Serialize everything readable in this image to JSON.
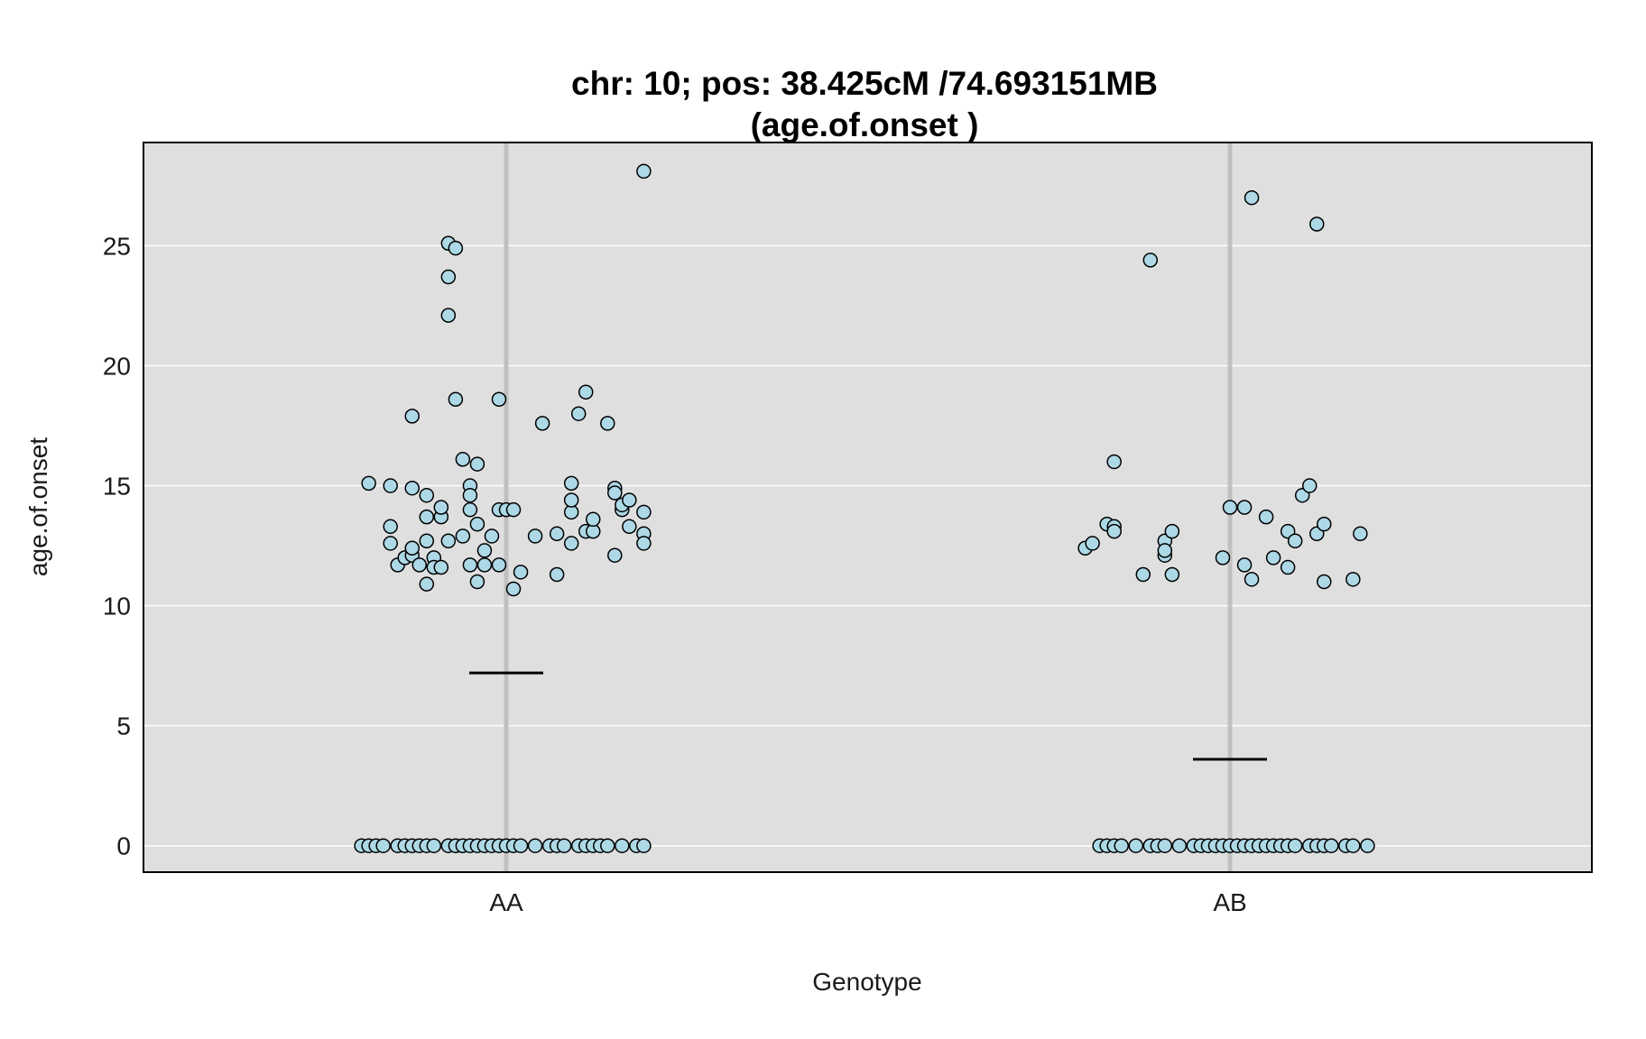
{
  "chart_data": {
    "type": "scatter",
    "title": "chr: 10; pos: 38.425cM /74.693151MB",
    "subtitle": "(age.of.onset )",
    "xlabel": "Genotype",
    "ylabel": "age.of.onset",
    "categories": [
      "AA",
      "AB"
    ],
    "ylim": [
      -1.1,
      29.3
    ],
    "yticks": [
      0,
      5,
      10,
      15,
      20,
      25
    ],
    "grid": true,
    "means": [
      7.2,
      3.6
    ],
    "colors": {
      "panel": "#dfdfdf",
      "point_fill": "#add8e6",
      "point_stroke": "#000000",
      "grid": "#ffffff",
      "center_line": "#c0c0c0"
    },
    "series": [
      {
        "category": "AA",
        "points": [
          [
            -0.19,
            15.1
          ],
          [
            -0.16,
            13.3
          ],
          [
            -0.16,
            15.0
          ],
          [
            -0.16,
            12.6
          ],
          [
            -0.15,
            11.7
          ],
          [
            -0.14,
            12.0
          ],
          [
            -0.13,
            12.1
          ],
          [
            -0.12,
            11.7
          ],
          [
            -0.13,
            17.9
          ],
          [
            -0.13,
            14.9
          ],
          [
            -0.13,
            12.4
          ],
          [
            -0.11,
            14.6
          ],
          [
            -0.11,
            13.7
          ],
          [
            -0.11,
            12.7
          ],
          [
            -0.1,
            12.0
          ],
          [
            -0.11,
            10.9
          ],
          [
            -0.1,
            11.6
          ],
          [
            -0.09,
            13.7
          ],
          [
            -0.09,
            14.1
          ],
          [
            -0.09,
            11.6
          ],
          [
            -0.08,
            12.7
          ],
          [
            -0.08,
            25.1
          ],
          [
            -0.07,
            24.9
          ],
          [
            -0.08,
            23.7
          ],
          [
            -0.08,
            22.1
          ],
          [
            -0.07,
            18.6
          ],
          [
            -0.06,
            16.1
          ],
          [
            -0.05,
            15.0
          ],
          [
            -0.05,
            14.6
          ],
          [
            -0.05,
            14.0
          ],
          [
            -0.06,
            12.9
          ],
          [
            -0.05,
            11.7
          ],
          [
            -0.04,
            11.0
          ],
          [
            -0.04,
            15.9
          ],
          [
            -0.04,
            13.4
          ],
          [
            -0.03,
            12.3
          ],
          [
            -0.03,
            11.7
          ],
          [
            -0.02,
            12.9
          ],
          [
            -0.01,
            18.6
          ],
          [
            -0.01,
            14.0
          ],
          [
            -0.01,
            11.7
          ],
          [
            0.0,
            14.0
          ],
          [
            0.01,
            14.0
          ],
          [
            0.01,
            10.7
          ],
          [
            0.02,
            11.4
          ],
          [
            0.04,
            12.9
          ],
          [
            0.05,
            17.6
          ],
          [
            0.07,
            13.0
          ],
          [
            0.07,
            11.3
          ],
          [
            0.09,
            13.9
          ],
          [
            0.09,
            15.1
          ],
          [
            0.09,
            14.4
          ],
          [
            0.09,
            12.6
          ],
          [
            0.1,
            18.0
          ],
          [
            0.11,
            13.1
          ],
          [
            0.12,
            13.1
          ],
          [
            0.11,
            18.9
          ],
          [
            0.12,
            13.6
          ],
          [
            0.14,
            17.6
          ],
          [
            0.15,
            12.1
          ],
          [
            0.15,
            14.9
          ],
          [
            0.15,
            14.7
          ],
          [
            0.16,
            14.0
          ],
          [
            0.16,
            14.2
          ],
          [
            0.17,
            14.4
          ],
          [
            0.17,
            13.3
          ],
          [
            0.19,
            13.9
          ],
          [
            0.19,
            13.0
          ],
          [
            0.19,
            12.6
          ],
          [
            0.19,
            28.1
          ],
          [
            -0.2,
            0
          ],
          [
            -0.19,
            0
          ],
          [
            -0.18,
            0
          ],
          [
            -0.17,
            0
          ],
          [
            -0.15,
            0
          ],
          [
            -0.14,
            0
          ],
          [
            -0.13,
            0
          ],
          [
            -0.12,
            0
          ],
          [
            -0.11,
            0
          ],
          [
            -0.1,
            0
          ],
          [
            -0.08,
            0
          ],
          [
            -0.07,
            0
          ],
          [
            -0.06,
            0
          ],
          [
            -0.05,
            0
          ],
          [
            -0.04,
            0
          ],
          [
            -0.03,
            0
          ],
          [
            -0.02,
            0
          ],
          [
            -0.01,
            0
          ],
          [
            0.0,
            0
          ],
          [
            0.01,
            0
          ],
          [
            0.02,
            0
          ],
          [
            0.04,
            0
          ],
          [
            0.06,
            0
          ],
          [
            0.07,
            0
          ],
          [
            0.08,
            0
          ],
          [
            0.1,
            0
          ],
          [
            0.11,
            0
          ],
          [
            0.12,
            0
          ],
          [
            0.13,
            0
          ],
          [
            0.14,
            0
          ],
          [
            0.16,
            0
          ],
          [
            0.18,
            0
          ],
          [
            0.19,
            0
          ]
        ]
      },
      {
        "category": "AB",
        "points": [
          [
            -0.2,
            12.4
          ],
          [
            -0.19,
            12.6
          ],
          [
            -0.17,
            13.4
          ],
          [
            -0.16,
            13.3
          ],
          [
            -0.16,
            13.1
          ],
          [
            -0.16,
            16.0
          ],
          [
            -0.12,
            11.3
          ],
          [
            -0.11,
            24.4
          ],
          [
            -0.09,
            12.1
          ],
          [
            -0.09,
            12.7
          ],
          [
            -0.09,
            12.3
          ],
          [
            -0.08,
            13.1
          ],
          [
            -0.08,
            11.3
          ],
          [
            -0.01,
            12.0
          ],
          [
            0.0,
            14.1
          ],
          [
            0.02,
            14.1
          ],
          [
            0.02,
            11.7
          ],
          [
            0.03,
            11.1
          ],
          [
            0.03,
            27.0
          ],
          [
            0.05,
            13.7
          ],
          [
            0.06,
            12.0
          ],
          [
            0.08,
            13.1
          ],
          [
            0.08,
            11.6
          ],
          [
            0.09,
            12.7
          ],
          [
            0.1,
            14.6
          ],
          [
            0.11,
            15.0
          ],
          [
            0.12,
            13.0
          ],
          [
            0.12,
            25.9
          ],
          [
            0.13,
            13.4
          ],
          [
            0.13,
            11.0
          ],
          [
            0.17,
            11.1
          ],
          [
            0.18,
            13.0
          ],
          [
            -0.18,
            0
          ],
          [
            -0.17,
            0
          ],
          [
            -0.16,
            0
          ],
          [
            -0.15,
            0
          ],
          [
            -0.13,
            0
          ],
          [
            -0.11,
            0
          ],
          [
            -0.1,
            0
          ],
          [
            -0.09,
            0
          ],
          [
            -0.07,
            0
          ],
          [
            -0.05,
            0
          ],
          [
            -0.04,
            0
          ],
          [
            -0.03,
            0
          ],
          [
            -0.02,
            0
          ],
          [
            -0.01,
            0
          ],
          [
            0.0,
            0
          ],
          [
            0.01,
            0
          ],
          [
            0.02,
            0
          ],
          [
            0.03,
            0
          ],
          [
            0.04,
            0
          ],
          [
            0.05,
            0
          ],
          [
            0.06,
            0
          ],
          [
            0.07,
            0
          ],
          [
            0.08,
            0
          ],
          [
            0.09,
            0
          ],
          [
            0.11,
            0
          ],
          [
            0.12,
            0
          ],
          [
            0.13,
            0
          ],
          [
            0.14,
            0
          ],
          [
            0.16,
            0
          ],
          [
            0.17,
            0
          ],
          [
            0.19,
            0
          ]
        ]
      }
    ]
  }
}
